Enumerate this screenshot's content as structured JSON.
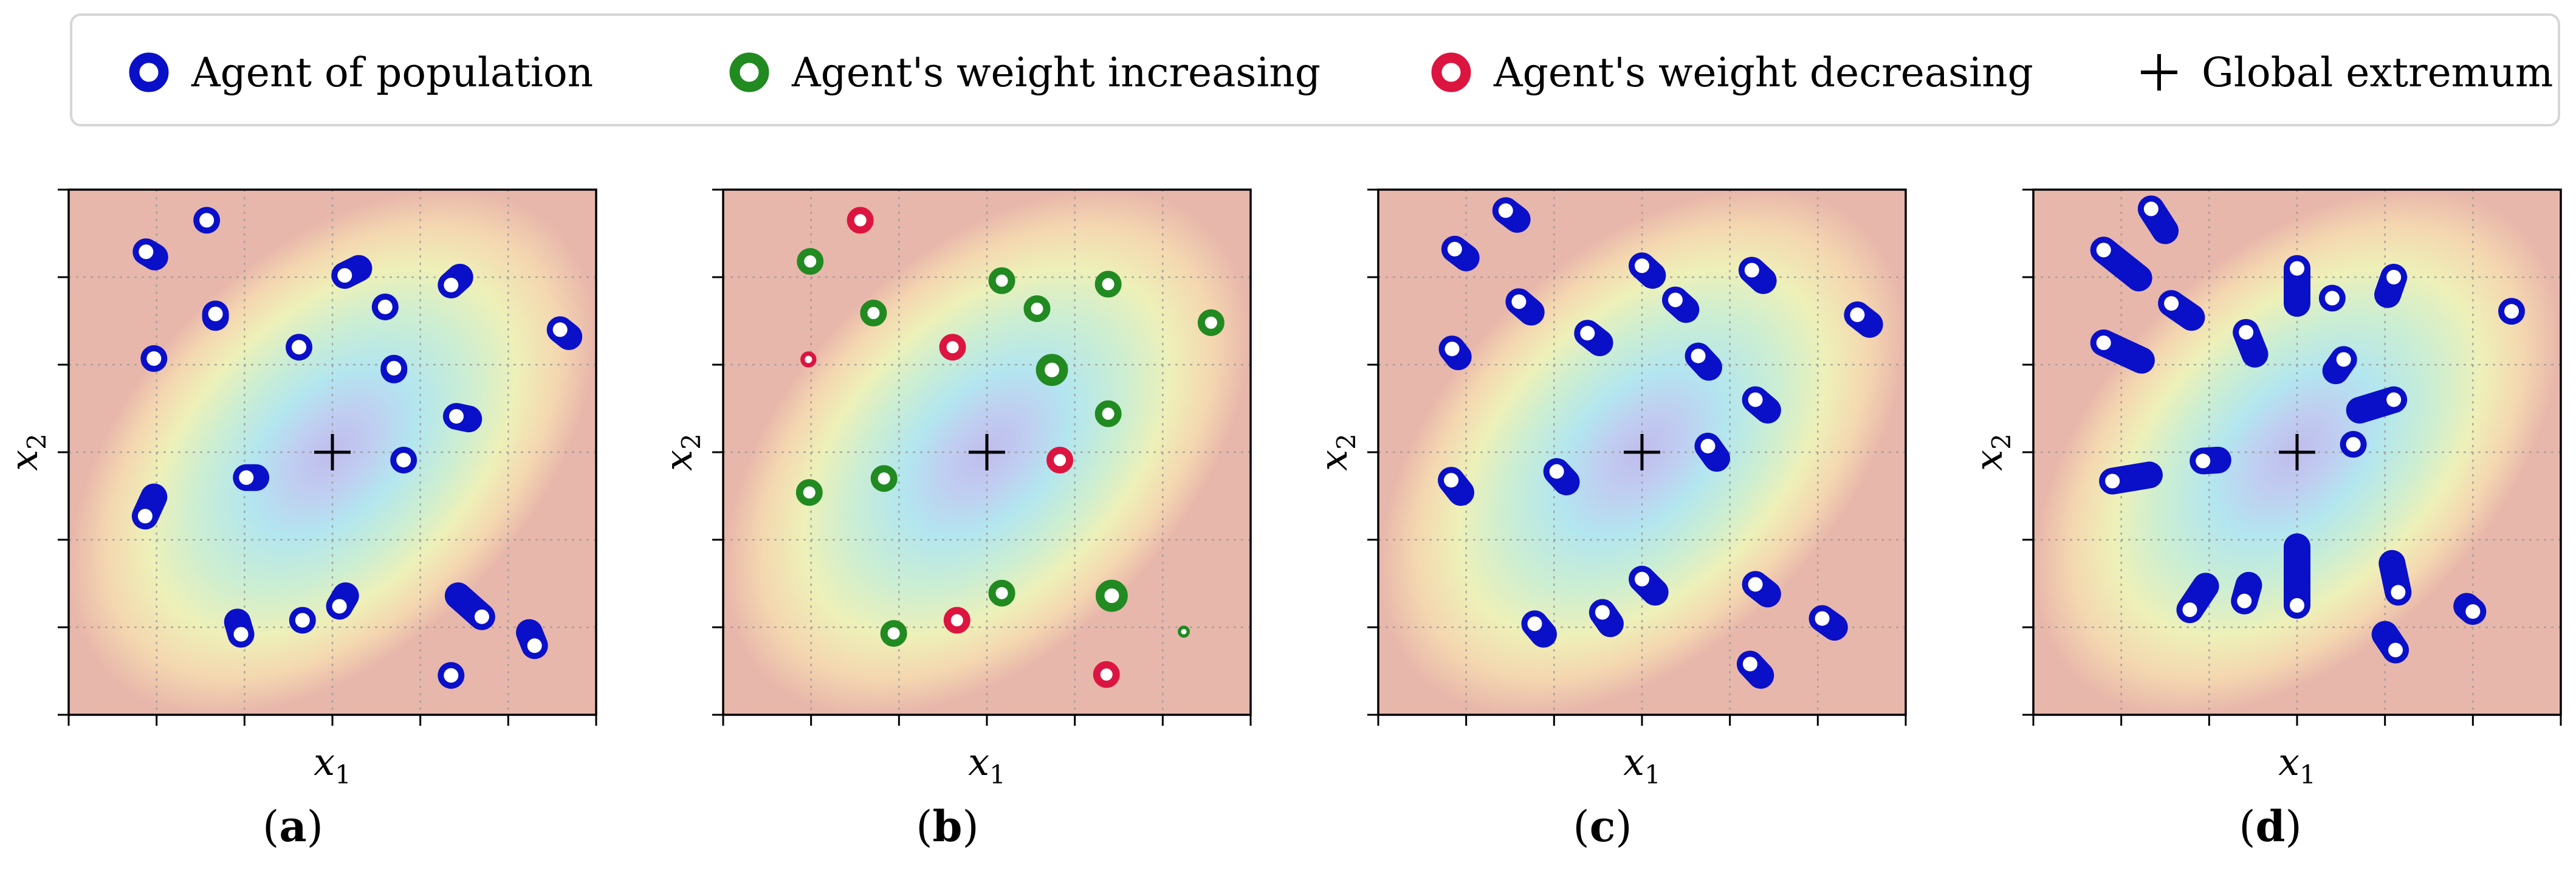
{
  "legend": {
    "items": [
      {
        "label": "Agent of population",
        "marker": "population-agent-icon",
        "color": "#0a10c8"
      },
      {
        "label": "Agent's weight increasing",
        "marker": "weight-increasing-icon",
        "color": "#218a21"
      },
      {
        "label": "Agent's weight decreasing",
        "marker": "weight-decreasing-icon",
        "color": "#dc1540"
      },
      {
        "label": "Global extremum",
        "marker": "plus-icon",
        "color": "#000000"
      }
    ]
  },
  "chart_data": [
    {
      "panel": "a",
      "type": "scatter",
      "xlabel": "x",
      "xlabel_sub": "1",
      "ylabel": "x",
      "ylabel_sub": "2",
      "xlim": [
        -3,
        3
      ],
      "ylim": [
        -3,
        3
      ],
      "grid": true,
      "extremum": [
        0,
        0
      ],
      "caption": "a",
      "series": [
        {
          "name": "Agent of population",
          "points": [
            [
              -2.12,
              2.29,
              -2.02,
              2.23
            ],
            [
              -1.43,
              2.65,
              -1.43,
              2.65
            ],
            [
              -1.33,
              1.58,
              -1.33,
              1.54
            ],
            [
              -0.38,
              1.2,
              -0.38,
              1.2
            ],
            [
              0.14,
              2.02,
              0.3,
              2.1
            ],
            [
              0.6,
              1.66,
              0.6,
              1.66
            ],
            [
              0.7,
              0.96,
              0.7,
              0.94
            ],
            [
              1.35,
              1.91,
              1.45,
              2.0
            ],
            [
              2.59,
              1.4,
              2.69,
              1.32
            ],
            [
              -2.03,
              1.07,
              -2.03,
              1.07
            ],
            [
              1.41,
              0.41,
              1.55,
              0.38
            ],
            [
              -2.13,
              -0.73,
              -2.03,
              -0.51
            ],
            [
              -0.98,
              -0.29,
              -0.87,
              -0.29
            ],
            [
              0.81,
              -0.09,
              0.81,
              -0.09
            ],
            [
              0.08,
              -1.76,
              0.15,
              -1.64
            ],
            [
              -1.04,
              -2.08,
              -1.08,
              -1.94
            ],
            [
              -0.34,
              -1.92,
              -0.34,
              -1.92
            ],
            [
              1.7,
              -1.88,
              1.43,
              -1.64
            ],
            [
              2.3,
              -2.21,
              2.24,
              -2.06
            ],
            [
              1.35,
              -2.55,
              1.35,
              -2.55
            ]
          ]
        }
      ]
    },
    {
      "panel": "b",
      "type": "scatter",
      "xlabel": "x",
      "xlabel_sub": "1",
      "ylabel": "x",
      "ylabel_sub": "2",
      "xlim": [
        -3,
        3
      ],
      "ylim": [
        -3,
        3
      ],
      "grid": true,
      "extremum": [
        0,
        0
      ],
      "caption": "b",
      "series": [
        {
          "name": "Agent's weight increasing",
          "points": [
            [
              -2.01,
              2.18
            ],
            [
              -1.29,
              1.59
            ],
            [
              0.17,
              1.96
            ],
            [
              0.57,
              1.64
            ],
            [
              1.38,
              1.92
            ],
            [
              2.55,
              1.48
            ],
            [
              0.74,
              0.94
            ],
            [
              1.38,
              0.44
            ],
            [
              -1.17,
              -0.3
            ],
            [
              -2.02,
              -0.46
            ],
            [
              0.17,
              -1.61
            ],
            [
              1.42,
              -1.64
            ],
            [
              -1.06,
              -2.07
            ],
            [
              2.24,
              -2.05
            ]
          ]
        },
        {
          "name": "Agent's weight decreasing",
          "points": [
            [
              -1.44,
              2.65
            ],
            [
              -2.03,
              1.06
            ],
            [
              -0.39,
              1.2
            ],
            [
              0.83,
              -0.09
            ],
            [
              -0.34,
              -1.92
            ],
            [
              1.36,
              -2.54
            ]
          ]
        }
      ]
    },
    {
      "panel": "c",
      "type": "scatter",
      "xlabel": "x",
      "xlabel_sub": "1",
      "ylabel": "x",
      "ylabel_sub": "2",
      "xlim": [
        -3,
        3
      ],
      "ylim": [
        -3,
        3
      ],
      "grid": true,
      "extremum": [
        0,
        0
      ],
      "caption": "c",
      "series": [
        {
          "name": "Agent of population",
          "points": [
            [
              -2.13,
              2.32,
              -2.0,
              2.22
            ],
            [
              -1.55,
              2.76,
              -1.42,
              2.66
            ],
            [
              -1.4,
              1.72,
              -1.26,
              1.6
            ],
            [
              0.0,
              2.13,
              0.12,
              2.02
            ],
            [
              1.25,
              2.08,
              1.38,
              1.96
            ],
            [
              -0.62,
              1.36,
              -0.48,
              1.25
            ],
            [
              0.38,
              1.74,
              0.5,
              1.63
            ],
            [
              2.45,
              1.57,
              2.59,
              1.46
            ],
            [
              -2.16,
              1.18,
              -2.09,
              1.09
            ],
            [
              0.64,
              1.1,
              0.76,
              0.97
            ],
            [
              1.29,
              0.6,
              1.43,
              0.48
            ],
            [
              0.75,
              0.07,
              0.85,
              -0.07
            ],
            [
              -0.97,
              -0.22,
              -0.86,
              -0.34
            ],
            [
              -2.17,
              -0.32,
              -2.06,
              -0.46
            ],
            [
              0.0,
              -1.45,
              0.15,
              -1.6
            ],
            [
              1.29,
              -1.51,
              1.43,
              -1.62
            ],
            [
              -1.22,
              -1.96,
              -1.12,
              -2.08
            ],
            [
              -0.45,
              -1.83,
              -0.36,
              -1.96
            ],
            [
              2.05,
              -1.9,
              2.19,
              -2.0
            ],
            [
              1.23,
              -2.42,
              1.35,
              -2.55
            ]
          ]
        }
      ]
    },
    {
      "panel": "d",
      "type": "scatter",
      "xlabel": "x",
      "xlabel_sub": "1",
      "ylabel": "x",
      "ylabel_sub": "2",
      "xlim": [
        -3,
        3
      ],
      "ylim": [
        -3,
        3
      ],
      "grid": true,
      "extremum": [
        0,
        0
      ],
      "caption": "d",
      "series": [
        {
          "name": "Agent of population",
          "points": [
            [
              -2.2,
              2.31,
              -1.8,
              1.99
            ],
            [
              -1.66,
              2.78,
              -1.5,
              2.53
            ],
            [
              -1.43,
              1.7,
              -1.2,
              1.54
            ],
            [
              0.0,
              2.1,
              0.0,
              1.7
            ],
            [
              1.1,
              2.0,
              1.03,
              1.8
            ],
            [
              0.4,
              1.76,
              0.4,
              1.76
            ],
            [
              2.44,
              1.61,
              2.44,
              1.61
            ],
            [
              -0.58,
              1.37,
              -0.48,
              1.12
            ],
            [
              -2.2,
              1.25,
              -1.77,
              1.05
            ],
            [
              0.53,
              1.06,
              0.44,
              0.93
            ],
            [
              1.1,
              0.6,
              0.71,
              0.48
            ],
            [
              -1.07,
              -0.1,
              -0.9,
              -0.09
            ],
            [
              -2.1,
              -0.33,
              -1.68,
              -0.26
            ],
            [
              0.64,
              0.09,
              0.64,
              0.09
            ],
            [
              0.0,
              -1.75,
              0.0,
              -1.08
            ],
            [
              1.15,
              -1.6,
              1.08,
              -1.27
            ],
            [
              -1.22,
              -1.8,
              -1.04,
              -1.53
            ],
            [
              -0.6,
              -1.7,
              -0.55,
              -1.52
            ],
            [
              2.0,
              -1.82,
              1.93,
              -1.76
            ],
            [
              1.12,
              -2.26,
              1.0,
              -2.08
            ]
          ]
        }
      ]
    }
  ]
}
